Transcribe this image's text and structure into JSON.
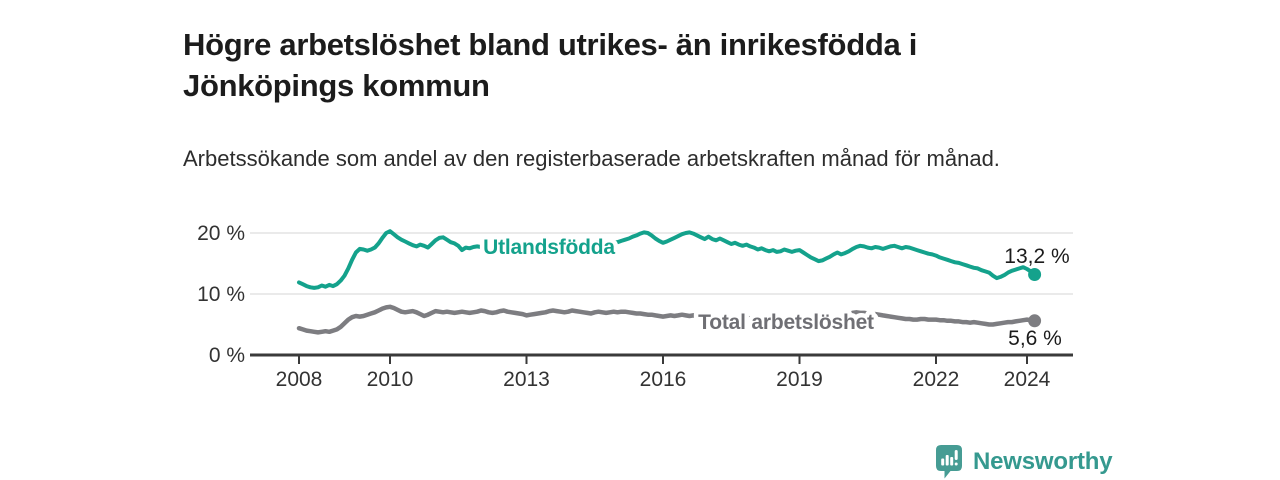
{
  "header": {
    "title": "Högre arbetslöshet bland utrikes- än inrikesfödda i Jönköpings kommun",
    "subtitle": "Arbetssökande som andel av den registerbaserade arbetskraften månad för månad."
  },
  "footer": {
    "brand": "Newsworthy",
    "logo_icon": "newsworthy-bar-chart-bubble-icon"
  },
  "colors": {
    "accent_teal": "#14a28c",
    "line_gray": "#7d7d81",
    "label_gray": "#6f6f74",
    "title_text": "#1c1c1c",
    "body_text": "#2d2d2d",
    "axis_text": "#333333",
    "grid": "#e3e3e3",
    "axis": "#3a3a3a",
    "value_label": "#1b1b1b",
    "brand_teal": "#35998f",
    "logo_fill": "#469c94",
    "background": "#ffffff"
  },
  "chart_data": {
    "type": "line",
    "title": "Högre arbetslöshet bland utrikes- än inrikesfödda i Jönköpings kommun",
    "subtitle": "Arbetssökande som andel av den registerbaserade arbetskraften månad för månad.",
    "x_unit": "year-month",
    "x_start_year": 2008,
    "x_step_months": 1,
    "xlim": [
      2006.9,
      2025.0
    ],
    "ylim": [
      0,
      22
    ],
    "grid": "horizontal-only",
    "legend_position": "inline-on-line",
    "x_ticks": [
      {
        "year": 2008,
        "label": "2008"
      },
      {
        "year": 2010,
        "label": "2010"
      },
      {
        "year": 2013,
        "label": "2013"
      },
      {
        "year": 2016,
        "label": "2016"
      },
      {
        "year": 2019,
        "label": "2019"
      },
      {
        "year": 2022,
        "label": "2022"
      },
      {
        "year": 2024,
        "label": "2024"
      }
    ],
    "y_ticks": [
      {
        "value": 0,
        "label": "0 %"
      },
      {
        "value": 10,
        "label": "10 %"
      },
      {
        "value": 20,
        "label": "20 %"
      }
    ],
    "series": [
      {
        "name": "Utlandsfödda",
        "color": "#14a28c",
        "label_color": "#14a28c",
        "end_label": "13,2 %",
        "end_value": 13.2,
        "values": [
          11.9,
          11.6,
          11.3,
          11.1,
          11.0,
          11.1,
          11.4,
          11.2,
          11.5,
          11.3,
          11.6,
          12.2,
          13.0,
          14.2,
          15.6,
          16.8,
          17.4,
          17.3,
          17.1,
          17.3,
          17.6,
          18.3,
          19.2,
          20.0,
          20.3,
          19.8,
          19.3,
          18.9,
          18.6,
          18.3,
          18.0,
          17.8,
          18.1,
          17.9,
          17.6,
          18.2,
          18.8,
          19.2,
          19.3,
          18.9,
          18.5,
          18.3,
          17.9,
          17.2,
          17.6,
          17.5,
          17.7,
          17.8,
          17.7,
          17.9,
          17.8,
          17.6,
          17.7,
          17.9,
          18.0,
          17.9,
          17.8,
          18.0,
          18.1,
          18.0,
          18.1,
          18.2,
          18.0,
          17.9,
          18.1,
          18.3,
          18.4,
          18.2,
          18.1,
          18.3,
          18.5,
          18.4,
          18.3,
          18.5,
          18.6,
          18.4,
          18.3,
          18.5,
          18.7,
          18.6,
          18.5,
          18.4,
          18.6,
          18.5,
          18.5,
          18.7,
          18.9,
          19.1,
          19.4,
          19.6,
          19.9,
          20.1,
          20.0,
          19.6,
          19.1,
          18.7,
          18.4,
          18.6,
          18.9,
          19.2,
          19.5,
          19.8,
          20.0,
          20.1,
          19.9,
          19.6,
          19.3,
          19.0,
          19.4,
          19.0,
          18.8,
          19.1,
          18.8,
          18.5,
          18.2,
          18.4,
          18.1,
          17.9,
          18.1,
          17.8,
          17.6,
          17.3,
          17.5,
          17.2,
          17.0,
          17.2,
          16.9,
          17.0,
          17.3,
          17.1,
          16.9,
          17.1,
          17.2,
          16.8,
          16.4,
          16.0,
          15.7,
          15.4,
          15.5,
          15.8,
          16.1,
          16.5,
          16.8,
          16.5,
          16.7,
          17.0,
          17.4,
          17.7,
          17.9,
          17.8,
          17.6,
          17.5,
          17.7,
          17.6,
          17.4,
          17.6,
          17.8,
          17.9,
          17.7,
          17.5,
          17.7,
          17.6,
          17.4,
          17.2,
          17.0,
          16.8,
          16.6,
          16.5,
          16.3,
          16.0,
          15.8,
          15.6,
          15.4,
          15.2,
          15.1,
          14.9,
          14.7,
          14.5,
          14.3,
          14.2,
          13.9,
          13.7,
          13.5,
          13.0,
          12.6,
          12.8,
          13.1,
          13.5,
          13.8,
          14.0,
          14.2,
          14.4,
          14.1,
          13.7,
          13.2
        ]
      },
      {
        "name": "Total arbetslöshet",
        "color": "#7d7d81",
        "label_color": "#6f6f74",
        "end_label": "5,6 %",
        "end_value": 5.6,
        "values": [
          4.4,
          4.2,
          4.0,
          3.9,
          3.8,
          3.7,
          3.8,
          3.9,
          3.8,
          4.0,
          4.2,
          4.6,
          5.2,
          5.8,
          6.2,
          6.4,
          6.3,
          6.4,
          6.6,
          6.8,
          7.0,
          7.3,
          7.6,
          7.8,
          7.9,
          7.7,
          7.4,
          7.1,
          7.0,
          7.1,
          7.2,
          7.0,
          6.7,
          6.4,
          6.6,
          6.9,
          7.2,
          7.1,
          7.0,
          7.1,
          7.0,
          6.9,
          7.0,
          7.1,
          7.0,
          6.9,
          7.0,
          7.1,
          7.3,
          7.2,
          7.0,
          6.9,
          7.0,
          7.2,
          7.3,
          7.1,
          7.0,
          6.9,
          6.8,
          6.7,
          6.5,
          6.6,
          6.7,
          6.8,
          6.9,
          7.0,
          7.2,
          7.3,
          7.2,
          7.1,
          7.0,
          7.1,
          7.3,
          7.2,
          7.1,
          7.0,
          6.9,
          6.8,
          7.0,
          7.1,
          7.0,
          6.9,
          7.0,
          7.1,
          7.0,
          7.1,
          7.1,
          7.0,
          6.9,
          6.8,
          6.8,
          6.7,
          6.6,
          6.6,
          6.5,
          6.4,
          6.3,
          6.4,
          6.5,
          6.4,
          6.5,
          6.6,
          6.5,
          6.4,
          6.5,
          6.4,
          6.3,
          6.4,
          6.4,
          6.2,
          6.1,
          6.0,
          6.1,
          6.2,
          6.1,
          6.0,
          6.1,
          6.2,
          6.1,
          6.0,
          6.1,
          6.0,
          5.9,
          6.0,
          6.1,
          6.0,
          5.9,
          5.9,
          6.0,
          6.1,
          6.0,
          6.1,
          6.1,
          6.0,
          5.9,
          5.8,
          5.8,
          5.9,
          6.0,
          6.0,
          6.1,
          6.2,
          6.3,
          6.4,
          6.5,
          6.7,
          6.9,
          7.0,
          6.9,
          6.9,
          6.8,
          6.8,
          6.7,
          6.6,
          6.5,
          6.4,
          6.3,
          6.2,
          6.1,
          6.0,
          5.9,
          5.9,
          5.8,
          5.8,
          5.9,
          5.9,
          5.8,
          5.8,
          5.8,
          5.7,
          5.7,
          5.6,
          5.6,
          5.5,
          5.5,
          5.4,
          5.4,
          5.3,
          5.4,
          5.3,
          5.2,
          5.1,
          5.0,
          5.0,
          5.1,
          5.2,
          5.3,
          5.4,
          5.4,
          5.5,
          5.6,
          5.7,
          5.8,
          5.7,
          5.6
        ]
      }
    ]
  }
}
